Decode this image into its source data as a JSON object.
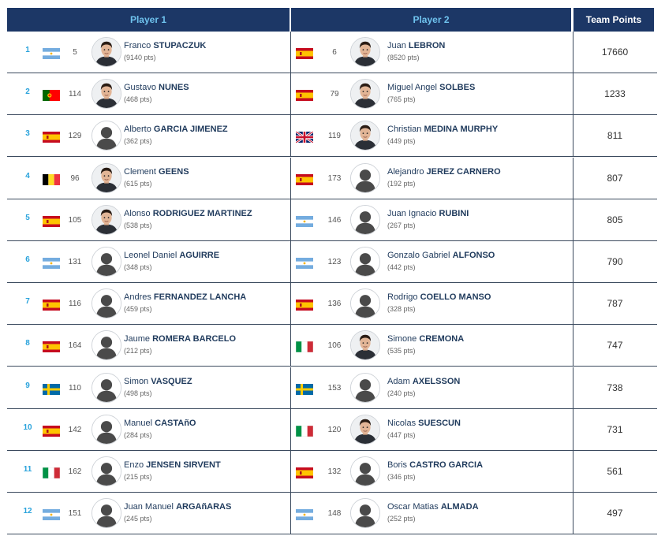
{
  "header": {
    "player1": "Player 1",
    "player2": "Player 2",
    "team_points": "Team Points"
  },
  "rows": [
    {
      "rank": "1",
      "p1": {
        "flag": "argentina",
        "seed": "5",
        "first": "Franco",
        "last": "STUPACZUK",
        "pts": "(9140 pts)",
        "photo": true
      },
      "p2": {
        "flag": "spain",
        "seed": "6",
        "first": "Juan",
        "last": "LEBRON",
        "pts": "(8520 pts)",
        "photo": true
      },
      "team_points": "17660"
    },
    {
      "rank": "2",
      "p1": {
        "flag": "portugal",
        "seed": "114",
        "first": "Gustavo",
        "last": "NUNES",
        "pts": "(468 pts)",
        "photo": true
      },
      "p2": {
        "flag": "spain",
        "seed": "79",
        "first": "Miguel Angel",
        "last": "SOLBES",
        "pts": "(765 pts)",
        "photo": true
      },
      "team_points": "1233"
    },
    {
      "rank": "3",
      "p1": {
        "flag": "spain",
        "seed": "129",
        "first": "Alberto",
        "last": "GARCIA JIMENEZ",
        "pts": "(362 pts)",
        "photo": false
      },
      "p2": {
        "flag": "uk",
        "seed": "119",
        "first": "Christian",
        "last": "MEDINA MURPHY",
        "pts": "(449 pts)",
        "photo": true
      },
      "team_points": "811"
    },
    {
      "rank": "4",
      "p1": {
        "flag": "belgium",
        "seed": "96",
        "first": "Clement",
        "last": "GEENS",
        "pts": "(615 pts)",
        "photo": true
      },
      "p2": {
        "flag": "spain",
        "seed": "173",
        "first": "Alejandro",
        "last": "JEREZ CARNERO",
        "pts": "(192 pts)",
        "photo": false
      },
      "team_points": "807"
    },
    {
      "rank": "5",
      "p1": {
        "flag": "spain",
        "seed": "105",
        "first": "Alonso",
        "last": "RODRIGUEZ MARTINEZ",
        "pts": "(538 pts)",
        "photo": true
      },
      "p2": {
        "flag": "argentina",
        "seed": "146",
        "first": "Juan Ignacio",
        "last": "RUBINI",
        "pts": "(267 pts)",
        "photo": false
      },
      "team_points": "805"
    },
    {
      "rank": "6",
      "p1": {
        "flag": "argentina",
        "seed": "131",
        "first": "Leonel Daniel",
        "last": "AGUIRRE",
        "pts": "(348 pts)",
        "photo": false
      },
      "p2": {
        "flag": "argentina",
        "seed": "123",
        "first": "Gonzalo Gabriel",
        "last": "ALFONSO",
        "pts": "(442 pts)",
        "photo": false
      },
      "team_points": "790"
    },
    {
      "rank": "7",
      "p1": {
        "flag": "spain",
        "seed": "116",
        "first": "Andres",
        "last": "FERNANDEZ LANCHA",
        "pts": "(459 pts)",
        "photo": false
      },
      "p2": {
        "flag": "spain",
        "seed": "136",
        "first": "Rodrigo",
        "last": "COELLO MANSO",
        "pts": "(328 pts)",
        "photo": false
      },
      "team_points": "787"
    },
    {
      "rank": "8",
      "p1": {
        "flag": "spain",
        "seed": "164",
        "first": "Jaume",
        "last": "ROMERA BARCELO",
        "pts": "(212 pts)",
        "photo": false
      },
      "p2": {
        "flag": "italy",
        "seed": "106",
        "first": "Simone",
        "last": "CREMONA",
        "pts": "(535 pts)",
        "photo": true
      },
      "team_points": "747"
    },
    {
      "rank": "9",
      "p1": {
        "flag": "sweden",
        "seed": "110",
        "first": "Simon",
        "last": "VASQUEZ",
        "pts": "(498 pts)",
        "photo": false
      },
      "p2": {
        "flag": "sweden",
        "seed": "153",
        "first": "Adam",
        "last": "AXELSSON",
        "pts": "(240 pts)",
        "photo": false
      },
      "team_points": "738"
    },
    {
      "rank": "10",
      "p1": {
        "flag": "spain",
        "seed": "142",
        "first": "Manuel",
        "last": "CASTAñO",
        "pts": "(284 pts)",
        "photo": false
      },
      "p2": {
        "flag": "italy",
        "seed": "120",
        "first": "Nicolas",
        "last": "SUESCUN",
        "pts": "(447 pts)",
        "photo": true
      },
      "team_points": "731"
    },
    {
      "rank": "11",
      "p1": {
        "flag": "italy",
        "seed": "162",
        "first": "Enzo",
        "last": "JENSEN SIRVENT",
        "pts": "(215 pts)",
        "photo": false
      },
      "p2": {
        "flag": "spain",
        "seed": "132",
        "first": "Boris",
        "last": "CASTRO GARCIA",
        "pts": "(346 pts)",
        "photo": false
      },
      "team_points": "561"
    },
    {
      "rank": "12",
      "p1": {
        "flag": "argentina",
        "seed": "151",
        "first": "Juan Manuel",
        "last": "ARGAñARAS",
        "pts": "(245 pts)",
        "photo": false
      },
      "p2": {
        "flag": "argentina",
        "seed": "148",
        "first": "Oscar Matias",
        "last": "ALMADA",
        "pts": "(252 pts)",
        "photo": false
      },
      "team_points": "497"
    }
  ],
  "colors": {
    "header_bg": "#1c3766",
    "header_text": "#6fc3ee",
    "rank_text": "#2aa3dc"
  }
}
